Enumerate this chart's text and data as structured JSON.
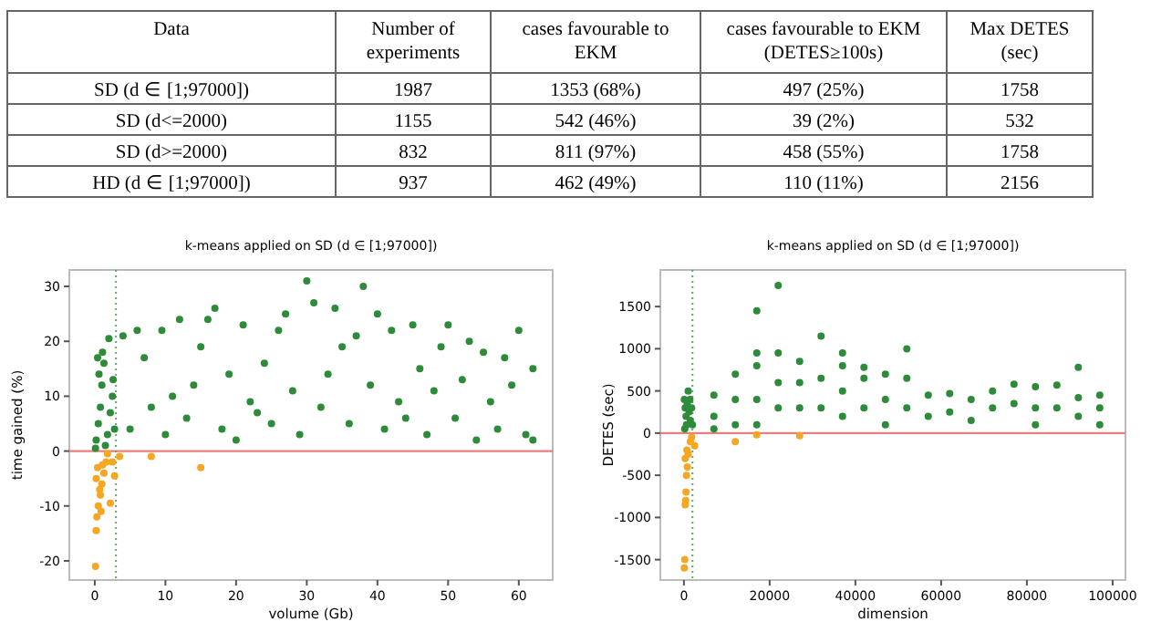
{
  "chart_data": [
    {
      "type": "other",
      "categories": [
        "Data",
        "Number of experiments",
        "cases favourable to EKM",
        "cases favourable to EKM (DETES≥100s)",
        "Max DETES (sec)"
      ],
      "cell_labels": [
        [
          "SD (d ∈ [1;97000])",
          "1987",
          "1353 (68%)",
          "497 (25%)",
          "1758"
        ],
        [
          "SD (d<=2000)",
          "1155",
          "542 (46%)",
          "39 (2%)",
          "532"
        ],
        [
          "SD (d>=2000)",
          "832",
          "811 (97%)",
          "458 (55%)",
          "1758"
        ],
        [
          "HD (d ∈ [1;97000])",
          "937",
          "462 (49%)",
          "110 (11%)",
          "2156"
        ]
      ]
    },
    {
      "type": "scatter",
      "title": "k-means applied on SD (d ∈ [1;97000])",
      "xlabel": "volume (Gb)",
      "ylabel": "time gained (%)",
      "xlim": [
        -3.6,
        64.8
      ],
      "ylim": [
        -23.5,
        33
      ],
      "xticks": [
        0,
        10,
        20,
        30,
        40,
        50,
        60
      ],
      "yticks": [
        -20,
        -10,
        0,
        10,
        20,
        30
      ],
      "grid": false,
      "marker": "circle",
      "series": [
        {
          "color": "#2e8b3a",
          "x": [
            0.2,
            0.5,
            0.8,
            1,
            1.3,
            0.4,
            1.8,
            2.2,
            2.5,
            0.1,
            1.5,
            2.8,
            0.6,
            2,
            1.1,
            2.6,
            4,
            6,
            8,
            9.5,
            10,
            12,
            13,
            14,
            15,
            16,
            17,
            18,
            19,
            20,
            21,
            22,
            24,
            25,
            26,
            27,
            28,
            29,
            30,
            31,
            32,
            33,
            34,
            35,
            36,
            37,
            38,
            39,
            40,
            41,
            42,
            43,
            45,
            46,
            47,
            48,
            49,
            50,
            51,
            52,
            53,
            54,
            55,
            56,
            57,
            58,
            59,
            60,
            61,
            62,
            62,
            44,
            23,
            11,
            7,
            5
          ],
          "values": [
            2,
            5,
            8,
            12,
            16,
            17,
            3,
            7,
            10,
            0.5,
            1,
            4,
            14,
            20.5,
            18,
            13,
            21,
            22,
            8,
            22,
            3,
            24,
            6,
            12,
            19,
            24,
            26,
            4,
            14,
            2,
            23,
            9,
            16,
            5,
            22,
            25,
            11,
            3,
            31,
            27,
            8,
            14,
            26,
            19,
            5,
            21,
            30,
            12,
            25,
            4,
            22,
            9,
            23,
            15,
            3,
            11,
            19,
            23,
            6,
            13,
            20,
            2,
            18,
            9,
            4,
            17,
            12,
            22,
            3,
            15,
            2,
            6,
            7,
            10,
            17,
            4
          ]
        },
        {
          "color": "#f5a623",
          "x": [
            0.1,
            0.2,
            0.3,
            0.5,
            0.8,
            1,
            1.3,
            1.6,
            3.5,
            2.2,
            0.4,
            0.7,
            1.1,
            2.8,
            8,
            15,
            0.2,
            1.8,
            2.5,
            0.9
          ],
          "values": [
            -21,
            -14.5,
            -12,
            -10,
            -8,
            -6,
            -4,
            -2,
            -1,
            -9.5,
            -3,
            -7,
            -2.5,
            -4.5,
            -1,
            -3,
            -5,
            -0.5,
            -2,
            -11
          ]
        }
      ],
      "ref_lines": [
        {
          "axis": "y",
          "value": 0,
          "color": "#e88080",
          "line_style": "solid"
        },
        {
          "axis": "x",
          "value": 3,
          "color": "#6aa86a",
          "line_style": "dotted"
        }
      ]
    },
    {
      "type": "scatter",
      "title": "k-means applied on SD (d ∈ [1;97000])",
      "xlabel": "dimension",
      "ylabel": "DETES (sec)",
      "xlim": [
        -5500,
        103000
      ],
      "ylim": [
        -1742,
        1934
      ],
      "xticks": [
        0,
        20000,
        40000,
        60000,
        80000,
        {
          "value": 100000,
          "label": "100000"
        }
      ],
      "yticks": [
        -1500,
        -1000,
        -500,
        0,
        500,
        1000,
        1500
      ],
      "grid": false,
      "marker": "circle",
      "series": [
        {
          "color": "#2e8b3a",
          "x": [
            100,
            300,
            500,
            800,
            1000,
            1200,
            1500,
            1800,
            2000,
            200,
            600,
            1400,
            7000,
            7000,
            7000,
            12000,
            12000,
            12000,
            17000,
            17000,
            17000,
            17000,
            17000,
            22000,
            22000,
            22000,
            22000,
            27000,
            27000,
            27000,
            32000,
            32000,
            32000,
            37000,
            37000,
            37000,
            37000,
            42000,
            42000,
            42000,
            47000,
            47000,
            47000,
            52000,
            52000,
            52000,
            57000,
            57000,
            62000,
            62000,
            67000,
            67000,
            72000,
            72000,
            77000,
            77000,
            82000,
            82000,
            82000,
            87000,
            87000,
            92000,
            92000,
            92000,
            97000,
            97000,
            97000
          ],
          "values": [
            400,
            300,
            200,
            350,
            500,
            250,
            150,
            300,
            100,
            50,
            100,
            400,
            450,
            200,
            50,
            700,
            400,
            100,
            1450,
            950,
            800,
            400,
            100,
            1750,
            950,
            600,
            300,
            850,
            600,
            300,
            1150,
            650,
            300,
            950,
            800,
            500,
            200,
            780,
            650,
            300,
            700,
            400,
            100,
            1000,
            650,
            300,
            450,
            200,
            470,
            250,
            400,
            150,
            500,
            300,
            580,
            350,
            550,
            300,
            100,
            570,
            300,
            780,
            420,
            200,
            450,
            300,
            100
          ]
        },
        {
          "color": "#f5a623",
          "x": [
            100,
            200,
            300,
            400,
            500,
            600,
            800,
            1000,
            2500,
            1500,
            1800,
            300,
            700,
            12000,
            27000,
            17000
          ],
          "values": [
            -1600,
            -1500,
            -850,
            -800,
            -700,
            -500,
            -400,
            -250,
            -150,
            -100,
            -50,
            -300,
            -200,
            -100,
            -30,
            -20
          ]
        }
      ],
      "ref_lines": [
        {
          "axis": "y",
          "value": 0,
          "color": "#e88080",
          "line_style": "solid"
        },
        {
          "axis": "x",
          "value": 2000,
          "color": "#6aa86a",
          "line_style": "dotted"
        }
      ]
    }
  ]
}
